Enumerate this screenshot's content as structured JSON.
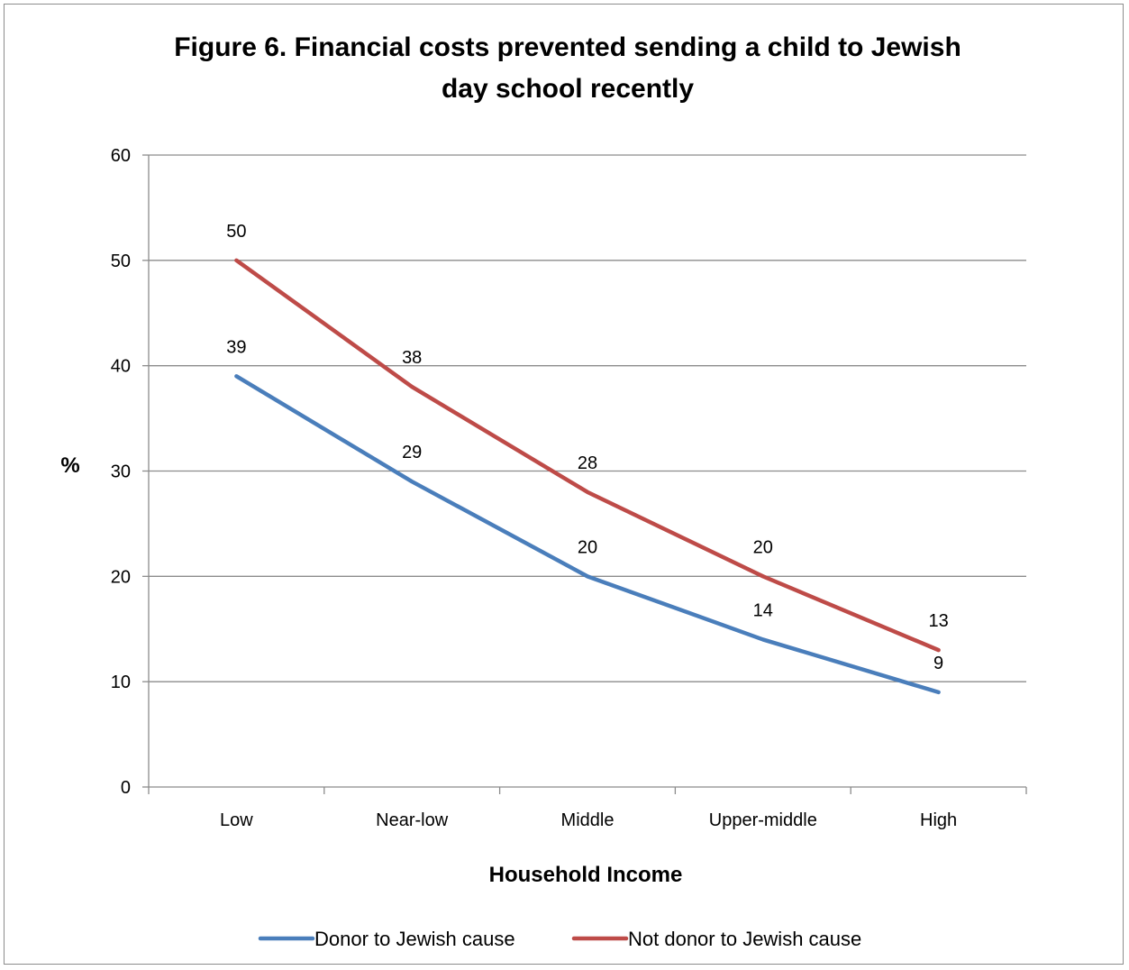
{
  "chart_data": {
    "type": "line",
    "title_line1": "Figure 6. Financial costs prevented sending a child to Jewish",
    "title_line2": "day school recently",
    "xlabel": "Household Income",
    "ylabel": "%",
    "categories": [
      "Low",
      "Near-low",
      "Middle",
      "Upper-middle",
      "High"
    ],
    "ylim": [
      0,
      60
    ],
    "yticks": [
      0,
      10,
      20,
      30,
      40,
      50,
      60
    ],
    "grid": true,
    "legend_position": "bottom",
    "series": [
      {
        "name": "Donor to Jewish cause",
        "color": "#4a7ebb",
        "values": [
          39,
          29,
          20,
          14,
          9
        ]
      },
      {
        "name": "Not donor to Jewish cause",
        "color": "#be4b48",
        "values": [
          50,
          38,
          28,
          20,
          13
        ]
      }
    ]
  }
}
